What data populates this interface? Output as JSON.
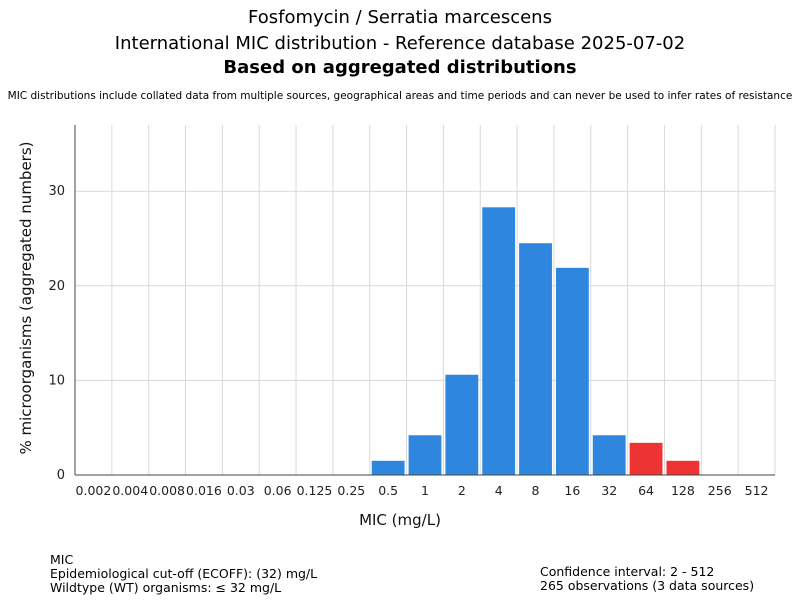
{
  "header": {
    "title_line1": "Fosfomycin / Serratia marcescens",
    "title_line2": "International MIC distribution - Reference database 2025-07-02",
    "title_line3": "Based on aggregated distributions",
    "note": "MIC distributions include collated data from multiple sources, geographical areas and time periods and can never be used to infer rates of resistance"
  },
  "footer": {
    "left": [
      "MIC",
      "Epidemiological cut-off (ECOFF): (32) mg/L",
      "Wildtype (WT) organisms: ≤ 32 mg/L"
    ],
    "right": [
      "Confidence interval: 2 - 512",
      "265 observations (3 data sources)"
    ]
  },
  "chart_data": {
    "type": "bar",
    "title": "Fosfomycin / Serratia marcescens",
    "xlabel": "MIC (mg/L)",
    "ylabel": "% microorganisms (aggregated numbers)",
    "categories": [
      "0.002",
      "0.004",
      "0.008",
      "0.016",
      "0.03",
      "0.06",
      "0.125",
      "0.25",
      "0.5",
      "1",
      "2",
      "4",
      "8",
      "16",
      "32",
      "64",
      "128",
      "256",
      "512"
    ],
    "values": [
      0,
      0,
      0,
      0,
      0,
      0,
      0,
      0,
      1.5,
      4.2,
      10.6,
      28.3,
      24.5,
      21.9,
      4.2,
      3.4,
      1.5,
      0,
      0
    ],
    "yticks": [
      0,
      10,
      20,
      30
    ],
    "ylim": [
      0,
      37
    ],
    "grid": true,
    "colors": {
      "wildtype": "#2e86de",
      "non_wildtype": "#ee3333",
      "grid": "#d9d9d9",
      "axis": "#444444"
    },
    "non_wildtype_from_index": 15
  }
}
